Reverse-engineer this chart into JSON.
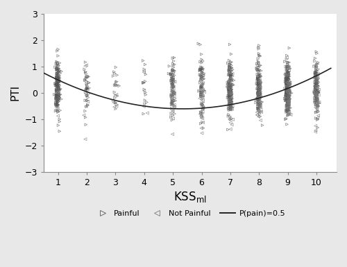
{
  "title": "",
  "ylabel": "PTI",
  "xlabel_main": "KSS",
  "xlabel_sub": "ml",
  "xlim": [
    0.5,
    10.7
  ],
  "ylim": [
    -3,
    3
  ],
  "xticks": [
    1,
    2,
    3,
    4,
    5,
    6,
    7,
    8,
    9,
    10
  ],
  "yticks": [
    -3,
    -2,
    -1,
    0,
    1,
    2,
    3
  ],
  "background_color": "#e8e8e8",
  "plot_bg": "#ffffff",
  "marker_color_painful": "#888888",
  "marker_color_notpainful": "#aaaaaa",
  "marker_edge_painful": "#555555",
  "marker_edge_notpainful": "#777777",
  "curve_color": "#222222",
  "legend_items": [
    "Painful",
    "Not Painful",
    "P(pain)=0.5"
  ],
  "seed": 12,
  "painful_counts": [
    200,
    40,
    20,
    15,
    80,
    80,
    200,
    160,
    250,
    120
  ],
  "notpainful_counts": [
    10,
    10,
    5,
    5,
    30,
    30,
    40,
    40,
    60,
    50
  ],
  "curve_a": 0.058,
  "curve_b": -0.62,
  "curve_c": 1.05
}
